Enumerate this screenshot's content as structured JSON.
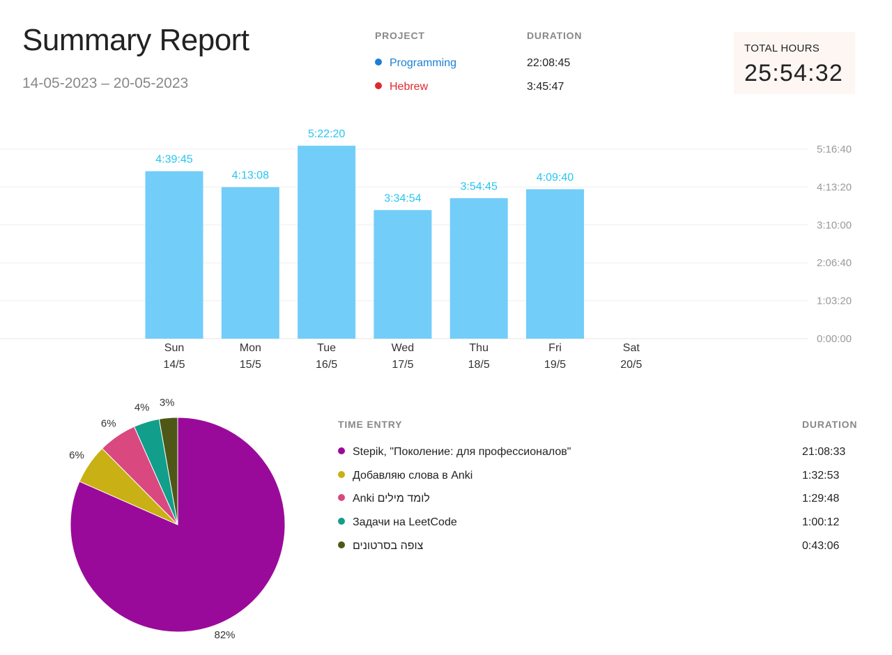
{
  "header": {
    "title": "Summary Report",
    "date_range": "14-05-2023 – 20-05-2023"
  },
  "projects": {
    "project_header": "PROJECT",
    "duration_header": "DURATION",
    "items": [
      {
        "name": "Programming",
        "duration": "22:08:45",
        "color": "#1a7fd4"
      },
      {
        "name": "Hebrew",
        "duration": "3:45:47",
        "color": "#e0282f"
      }
    ]
  },
  "total": {
    "label": "TOTAL HOURS",
    "value": "25:54:32"
  },
  "chart_data": [
    {
      "type": "bar",
      "title": "",
      "xlabel": "",
      "ylabel": "",
      "ylim": [
        0,
        20000
      ],
      "y_ticks": [
        {
          "value": 0,
          "label": "0:00:00"
        },
        {
          "value": 3800,
          "label": "1:03:20"
        },
        {
          "value": 7600,
          "label": "2:06:40"
        },
        {
          "value": 11400,
          "label": "3:10:00"
        },
        {
          "value": 15200,
          "label": "4:13:20"
        },
        {
          "value": 19000,
          "label": "5:16:40"
        }
      ],
      "categories": [
        {
          "day": "Sun",
          "date": "14/5"
        },
        {
          "day": "Mon",
          "date": "15/5"
        },
        {
          "day": "Tue",
          "date": "16/5"
        },
        {
          "day": "Wed",
          "date": "17/5"
        },
        {
          "day": "Thu",
          "date": "18/5"
        },
        {
          "day": "Fri",
          "date": "19/5"
        },
        {
          "day": "Sat",
          "date": "20/5"
        }
      ],
      "values_seconds": [
        16785,
        15188,
        19340,
        12894,
        14085,
        14980,
        0
      ],
      "value_labels": [
        "4:39:45",
        "4:13:08",
        "5:22:20",
        "3:34:54",
        "3:54:45",
        "4:09:40",
        ""
      ],
      "bar_color": "#72cdf8",
      "label_color": "#26c6f0",
      "grid": true
    },
    {
      "type": "pie",
      "slices": [
        {
          "label": "Stepik, \"Поколение: для профессионалов\"",
          "percent": 82,
          "seconds": 76113,
          "color": "#9a0a9a"
        },
        {
          "label": "Добавляю слова в Anki",
          "percent": 6,
          "seconds": 5573,
          "color": "#c9b014"
        },
        {
          "label": "Anki לומד מילים",
          "percent": 6,
          "seconds": 5388,
          "color": "#d9497f"
        },
        {
          "label": "Задачи на LeetCode",
          "percent": 4,
          "seconds": 3612,
          "color": "#119e8a"
        },
        {
          "label": "צופה בסרטונים",
          "percent": 3,
          "seconds": 2586,
          "color": "#4f5716"
        }
      ]
    }
  ],
  "time_entries": {
    "entry_header": "TIME ENTRY",
    "duration_header": "DURATION",
    "items": [
      {
        "label": "Stepik, \"Поколение: для профессионалов\"",
        "duration": "21:08:33",
        "color": "#9a0a9a"
      },
      {
        "label": "Добавляю слова в Anki",
        "duration": "1:32:53",
        "color": "#c9b014"
      },
      {
        "label": "Anki לומד מילים",
        "duration": "1:29:48",
        "color": "#d9497f"
      },
      {
        "label": "Задачи на LeetCode",
        "duration": "1:00:12",
        "color": "#119e8a"
      },
      {
        "label": "צופה בסרטונים",
        "duration": "0:43:06",
        "color": "#4f5716"
      }
    ]
  }
}
